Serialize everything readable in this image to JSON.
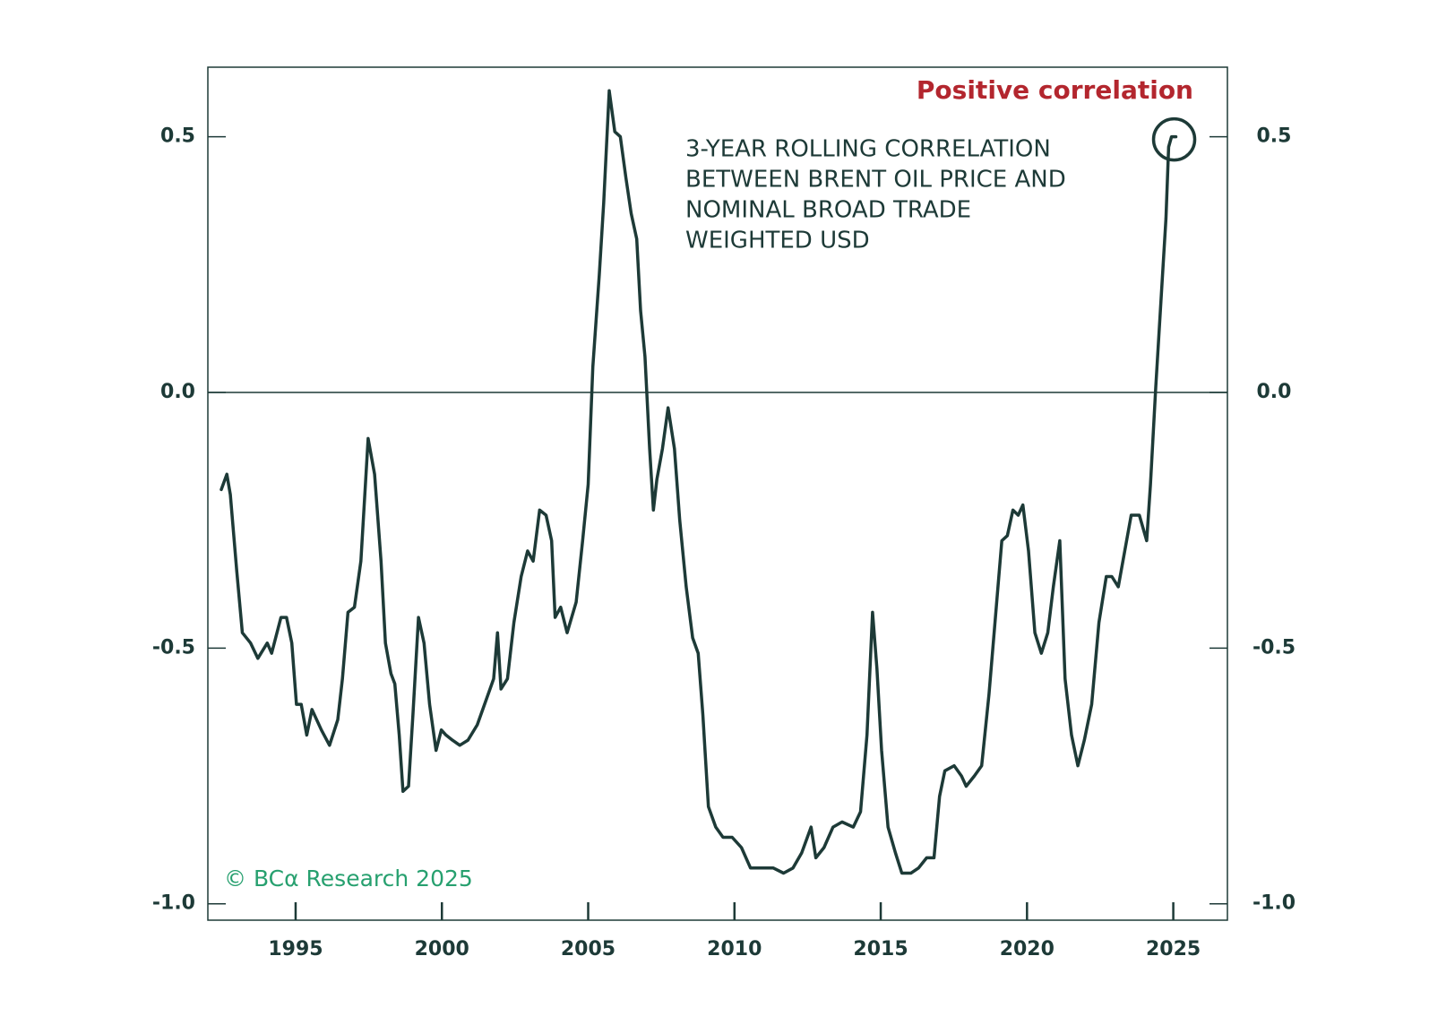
{
  "chart_data": {
    "type": "line",
    "annotation_title": "Positive correlation",
    "annotation_lines": [
      "3-YEAR ROLLING CORRELATION",
      "BETWEEN BRENT OIL PRICE AND",
      "NOMINAL BROAD TRADE",
      "WEIGHTED USD"
    ],
    "source": "© BCα Research 2025",
    "color": "#1d3a37",
    "annotation_color": "#b3262e",
    "source_color": "#27a06f",
    "xlim": [
      1992.0,
      2026.85
    ],
    "xticks": [
      1995,
      2000,
      2005,
      2010,
      2015,
      2020,
      2025
    ],
    "ylim": [
      -1.032,
      0.636
    ],
    "yticks": [
      {
        "value": -1,
        "label": "-1.0"
      },
      -0.5,
      {
        "value": 0,
        "label": "0.0"
      },
      0.5
    ],
    "y2lim": [
      -1.032,
      0.636
    ],
    "y2ticks": [
      {
        "value": -1,
        "label": "-1.0"
      },
      -0.5,
      {
        "value": 0,
        "label": "0.0"
      },
      0.5
    ],
    "zero_line": true,
    "x": [
      1992.46,
      1992.65,
      1992.77,
      1992.99,
      1993.18,
      1993.46,
      1993.71,
      1994.03,
      1994.18,
      1994.5,
      1994.69,
      1994.87,
      1995.03,
      1995.19,
      1995.38,
      1995.56,
      1995.88,
      1996.16,
      1996.44,
      1996.6,
      1996.79,
      1997.01,
      1997.23,
      1997.48,
      1997.7,
      1997.92,
      1998.07,
      1998.26,
      1998.39,
      1998.54,
      1998.67,
      1998.86,
      1999.01,
      1999.2,
      1999.39,
      1999.58,
      1999.8,
      1999.98,
      2000.14,
      2000.36,
      2000.61,
      2000.89,
      2001.21,
      2001.52,
      2001.77,
      2001.9,
      2002.02,
      2002.24,
      2002.46,
      2002.71,
      2002.93,
      2003.12,
      2003.34,
      2003.56,
      2003.75,
      2003.87,
      2004.06,
      2004.28,
      2004.59,
      2004.81,
      2005.0,
      2005.16,
      2005.38,
      2005.53,
      2005.72,
      2005.91,
      2006.1,
      2006.29,
      2006.47,
      2006.66,
      2006.79,
      2006.94,
      2007.1,
      2007.23,
      2007.35,
      2007.54,
      2007.73,
      2007.95,
      2008.13,
      2008.35,
      2008.57,
      2008.76,
      2008.92,
      2009.11,
      2009.36,
      2009.61,
      2009.92,
      2010.24,
      2010.55,
      2010.86,
      2011.33,
      2011.68,
      2012.0,
      2012.3,
      2012.62,
      2012.78,
      2013.06,
      2013.37,
      2013.68,
      2014.06,
      2014.31,
      2014.53,
      2014.72,
      2014.87,
      2015.03,
      2015.25,
      2015.5,
      2015.72,
      2016.03,
      2016.29,
      2016.57,
      2016.82,
      2017.01,
      2017.19,
      2017.51,
      2017.76,
      2017.92,
      2018.2,
      2018.45,
      2018.7,
      2018.95,
      2019.14,
      2019.33,
      2019.52,
      2019.7,
      2019.86,
      2020.05,
      2020.27,
      2020.49,
      2020.71,
      2020.9,
      2021.12,
      2021.3,
      2021.52,
      2021.74,
      2021.96,
      2022.21,
      2022.46,
      2022.71,
      2022.9,
      2023.12,
      2023.34,
      2023.56,
      2023.84,
      2024.09,
      2024.22,
      2024.4,
      2024.59,
      2024.75,
      2024.84,
      2024.94,
      2025.09
    ],
    "values": [
      -0.19,
      -0.16,
      -0.2,
      -0.35,
      -0.47,
      -0.49,
      -0.52,
      -0.49,
      -0.51,
      -0.44,
      -0.44,
      -0.49,
      -0.61,
      -0.61,
      -0.67,
      -0.62,
      -0.66,
      -0.69,
      -0.64,
      -0.56,
      -0.43,
      -0.42,
      -0.33,
      -0.09,
      -0.16,
      -0.33,
      -0.49,
      -0.55,
      -0.57,
      -0.67,
      -0.78,
      -0.77,
      -0.63,
      -0.44,
      -0.49,
      -0.61,
      -0.7,
      -0.66,
      -0.67,
      -0.68,
      -0.69,
      -0.68,
      -0.65,
      -0.6,
      -0.56,
      -0.47,
      -0.58,
      -0.56,
      -0.45,
      -0.36,
      -0.31,
      -0.33,
      -0.23,
      -0.24,
      -0.29,
      -0.44,
      -0.42,
      -0.47,
      -0.41,
      -0.29,
      -0.18,
      0.05,
      0.23,
      0.37,
      0.59,
      0.51,
      0.5,
      0.42,
      0.35,
      0.3,
      0.16,
      0.07,
      -0.11,
      -0.23,
      -0.17,
      -0.11,
      -0.03,
      -0.11,
      -0.25,
      -0.38,
      -0.48,
      -0.51,
      -0.63,
      -0.81,
      -0.85,
      -0.87,
      -0.87,
      -0.89,
      -0.93,
      -0.93,
      -0.93,
      -0.94,
      -0.93,
      -0.9,
      -0.85,
      -0.91,
      -0.89,
      -0.85,
      -0.84,
      -0.85,
      -0.82,
      -0.67,
      -0.43,
      -0.54,
      -0.7,
      -0.85,
      -0.9,
      -0.94,
      -0.94,
      -0.93,
      -0.91,
      -0.91,
      -0.79,
      -0.74,
      -0.73,
      -0.75,
      -0.77,
      -0.75,
      -0.73,
      -0.59,
      -0.42,
      -0.29,
      -0.28,
      -0.23,
      -0.24,
      -0.22,
      -0.31,
      -0.47,
      -0.51,
      -0.47,
      -0.38,
      -0.29,
      -0.56,
      -0.67,
      -0.73,
      -0.68,
      -0.61,
      -0.45,
      -0.36,
      -0.36,
      -0.38,
      -0.31,
      -0.24,
      -0.24,
      -0.29,
      -0.18,
      0.01,
      0.19,
      0.34,
      0.48,
      0.5,
      0.5
    ]
  }
}
